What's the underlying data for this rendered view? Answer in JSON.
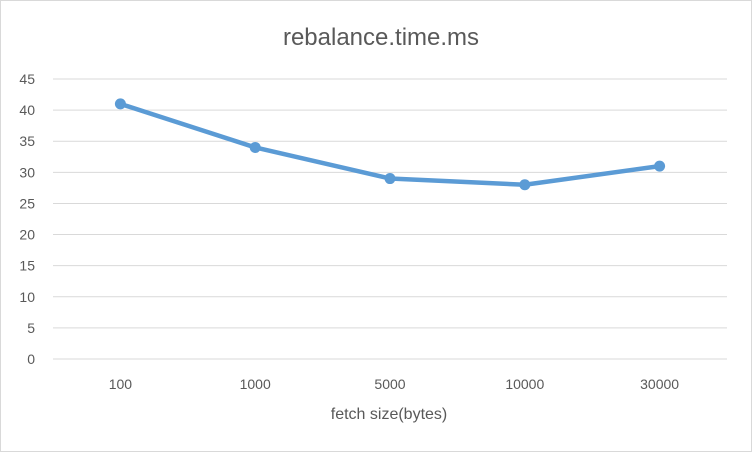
{
  "chart_data": {
    "type": "line",
    "title": "rebalance.time.ms",
    "xlabel": "fetch size(bytes)",
    "ylabel": "",
    "categories": [
      "100",
      "1000",
      "5000",
      "10000",
      "30000"
    ],
    "series": [
      {
        "values": [
          41,
          34,
          29,
          28,
          31
        ],
        "color": "#5B9BD5"
      }
    ],
    "ylim": [
      0,
      45
    ],
    "yticks": [
      0,
      5,
      10,
      15,
      20,
      25,
      30,
      35,
      40,
      45
    ],
    "grid": true,
    "legend": "none"
  }
}
